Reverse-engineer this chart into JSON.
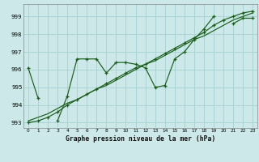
{
  "title": "Graphe pression niveau de la mer (hPa)",
  "bg_color": "#cce8e8",
  "grid_color": "#aad4d4",
  "line_color": "#1a5e1a",
  "xlim": [
    -0.5,
    23.5
  ],
  "ylim": [
    992.7,
    999.7
  ],
  "yticks": [
    993,
    994,
    995,
    996,
    997,
    998,
    999
  ],
  "xticks": [
    0,
    1,
    2,
    3,
    4,
    5,
    6,
    7,
    8,
    9,
    10,
    11,
    12,
    13,
    14,
    15,
    16,
    17,
    18,
    19,
    20,
    21,
    22,
    23
  ],
  "series1": [
    996.1,
    994.4,
    null,
    993.1,
    994.5,
    996.6,
    996.6,
    996.6,
    995.8,
    996.4,
    996.4,
    996.3,
    996.1,
    995.0,
    995.1,
    996.6,
    997.0,
    997.7,
    998.3,
    999.0,
    null,
    998.6,
    998.9,
    998.9
  ],
  "series2": [
    993.0,
    993.1,
    993.3,
    993.6,
    994.0,
    994.3,
    994.6,
    994.9,
    995.2,
    995.5,
    995.8,
    996.1,
    996.3,
    996.6,
    996.9,
    997.2,
    997.5,
    997.8,
    998.1,
    998.5,
    998.8,
    999.0,
    999.2,
    999.3
  ],
  "series3": [
    993.1,
    993.3,
    993.5,
    993.8,
    994.1,
    994.3,
    994.6,
    994.9,
    995.1,
    995.4,
    995.7,
    996.0,
    996.3,
    996.5,
    996.8,
    997.1,
    997.4,
    997.7,
    997.9,
    998.2,
    998.5,
    998.8,
    999.0,
    999.2
  ]
}
